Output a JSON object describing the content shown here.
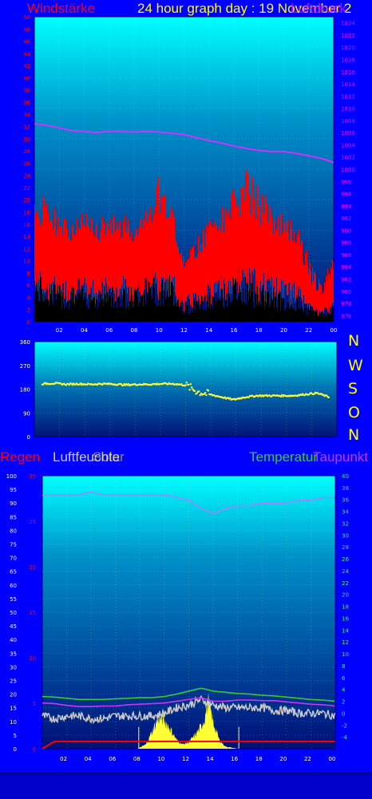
{
  "header": {
    "wind_label": "Windstärke",
    "title": "24 hour graph day : 19 November 2",
    "pressure_label": "Luftdruck"
  },
  "direction_labels": [
    "N",
    "W",
    "S",
    "O",
    "N"
  ],
  "lower_legend": {
    "rain": "Regen",
    "humidity": "Luftfeuchte",
    "sun": "Solar",
    "temperature": "Temperatur",
    "dewpoint": "Taupunkt"
  },
  "colors": {
    "background": "#0000ff",
    "wind": "#ff0000",
    "gust_shadow": "#000000",
    "pressure": "#cc33ff",
    "direction": "#ffff33",
    "temperature": "#33cc33",
    "dewpoint": "#cc33ff",
    "humidity": "#c8c8c8",
    "rain": "#ff0000",
    "solar": "#ffff33"
  },
  "chart_data": [
    {
      "type": "area",
      "name": "wind-pressure",
      "x_ticks": [
        "02",
        "04",
        "06",
        "08",
        "10",
        "12",
        "14",
        "16",
        "18",
        "20",
        "22",
        "00"
      ],
      "y_left_ticks": [
        0,
        2,
        4,
        6,
        8,
        10,
        12,
        14,
        16,
        18,
        20,
        22,
        24,
        26,
        28,
        30,
        32,
        34,
        36,
        38,
        40,
        42,
        44,
        46,
        48,
        50
      ],
      "y_right_ticks": [
        976,
        978,
        980,
        982,
        984,
        986,
        988,
        990,
        992,
        994,
        996,
        998,
        1000,
        1002,
        1004,
        1006,
        1008,
        1010,
        1012,
        1014,
        1016,
        1018,
        1020,
        1022,
        1024
      ],
      "ylim_left": [
        0,
        50
      ],
      "ylim_right": [
        975,
        1025
      ],
      "hours": [
        0,
        1,
        2,
        3,
        4,
        5,
        6,
        7,
        8,
        9,
        10,
        11,
        12,
        13,
        14,
        15,
        16,
        17,
        18,
        19,
        20,
        21,
        22,
        23,
        24
      ],
      "wind_peak": [
        22,
        20,
        18,
        17,
        18,
        17,
        18,
        18,
        16,
        20,
        24,
        20,
        10,
        14,
        17,
        19,
        22,
        26,
        22,
        20,
        18,
        17,
        11,
        6,
        12
      ],
      "wind_mean": [
        14,
        12,
        12,
        11,
        12,
        11,
        12,
        12,
        11,
        13,
        14,
        13,
        6,
        9,
        11,
        12,
        14,
        15,
        13,
        12,
        11,
        10,
        5,
        3,
        7
      ],
      "gust_shadow": [
        5,
        5,
        4,
        4,
        4,
        4,
        4,
        4,
        4,
        5,
        5,
        5,
        2,
        3,
        3,
        4,
        5,
        5,
        4,
        4,
        3,
        3,
        2,
        1,
        2
      ],
      "pressure": [
        1007.5,
        1007.2,
        1006.8,
        1006.3,
        1006.2,
        1006.0,
        1006.2,
        1006.2,
        1006.1,
        1006.2,
        1006.1,
        1005.9,
        1005.7,
        1005.2,
        1004.7,
        1004.3,
        1003.8,
        1003.4,
        1003.1,
        1002.9,
        1002.9,
        1002.6,
        1002.2,
        1001.8,
        1001.1
      ]
    },
    {
      "type": "scatter",
      "name": "wind-direction",
      "x_ticks": [
        "02",
        "04",
        "06",
        "08",
        "10",
        "12",
        "14",
        "16",
        "18",
        "20",
        "22",
        "00"
      ],
      "y_ticks": [
        0,
        90,
        180,
        270,
        360
      ],
      "ylim": [
        0,
        360
      ],
      "hours": [
        0,
        1,
        2,
        3,
        4,
        5,
        6,
        7,
        8,
        9,
        10,
        11,
        12,
        13,
        14,
        15,
        16,
        17,
        18,
        19,
        20,
        21,
        22,
        23,
        24
      ],
      "direction_deg": [
        200,
        202,
        198,
        200,
        198,
        200,
        199,
        196,
        198,
        198,
        200,
        200,
        195,
        170,
        160,
        150,
        140,
        150,
        155,
        155,
        155,
        155,
        160,
        165,
        150
      ]
    },
    {
      "type": "line",
      "name": "rain-humidity-solar-temperature-dewpoint",
      "x_ticks": [
        "02",
        "04",
        "06",
        "08",
        "10",
        "12",
        "14",
        "16",
        "18",
        "20",
        "22",
        "00"
      ],
      "y_left_ticks": [
        0,
        5,
        10,
        15,
        20,
        25,
        30,
        35,
        40,
        45,
        50,
        55,
        60,
        65,
        70,
        75,
        80,
        85,
        90,
        95,
        100
      ],
      "y_rain_ticks": [
        0,
        5,
        10,
        15,
        20,
        25,
        30
      ],
      "y_right_ticks": [
        -4,
        -2,
        0,
        2,
        4,
        6,
        8,
        10,
        12,
        14,
        16,
        18,
        20,
        22,
        24,
        26,
        28,
        30,
        32,
        34,
        36,
        38,
        40
      ],
      "ylim_left": [
        0,
        100
      ],
      "ylim_right": [
        -6,
        40
      ],
      "hours": [
        0,
        1,
        2,
        3,
        4,
        5,
        6,
        7,
        8,
        9,
        10,
        11,
        12,
        13,
        14,
        15,
        16,
        17,
        18,
        19,
        20,
        21,
        22,
        23,
        24
      ],
      "humidity_pct": [
        93,
        93,
        93,
        93,
        94,
        93,
        93,
        93,
        93,
        93,
        93,
        92,
        91,
        88,
        86,
        88,
        89,
        89,
        90,
        90,
        90,
        91,
        91,
        92,
        92
      ],
      "temperature_c": [
        2.8,
        2.7,
        2.5,
        2.3,
        2.3,
        2.3,
        2.4,
        2.5,
        2.6,
        2.6,
        2.8,
        3.2,
        3.7,
        4.2,
        3.7,
        3.5,
        3.3,
        3.2,
        3.0,
        2.9,
        2.7,
        2.5,
        2.3,
        2.2,
        2.0
      ],
      "dewpoint_c": [
        1.7,
        1.6,
        1.3,
        1.1,
        1.1,
        1.2,
        1.2,
        1.4,
        1.5,
        1.6,
        1.7,
        2.0,
        2.3,
        2.6,
        2.0,
        2.0,
        2.2,
        2.2,
        2.1,
        2.1,
        1.9,
        1.7,
        1.5,
        1.4,
        1.2
      ],
      "noise_series_pct": [
        12,
        11,
        12,
        12,
        11,
        11,
        12,
        12,
        12,
        12,
        13,
        15,
        16,
        18,
        16,
        15,
        15,
        15,
        15,
        14,
        14,
        13,
        13,
        13,
        12
      ],
      "rain_mm": [
        0,
        0.8,
        0.8,
        0.8,
        0.8,
        0.8,
        0.8,
        0.8,
        0.8,
        0.8,
        0.8,
        0.8,
        0.8,
        0.8,
        0.8,
        0.8,
        0.8,
        0.8,
        0.8,
        0.8,
        0.8,
        0.8,
        0.8,
        0.8,
        0.8
      ],
      "solar_hours": [
        7.8,
        8.5,
        9.0,
        9.5,
        10.0,
        10.5,
        11.0,
        11.5,
        12.0,
        12.5,
        13.0,
        13.3,
        13.6,
        14.0,
        14.5,
        15.0,
        16.0
      ],
      "solar_pct": [
        0,
        2,
        8,
        14,
        13,
        9,
        4,
        2,
        3,
        6,
        10,
        14,
        22,
        12,
        4,
        1,
        0
      ]
    }
  ]
}
